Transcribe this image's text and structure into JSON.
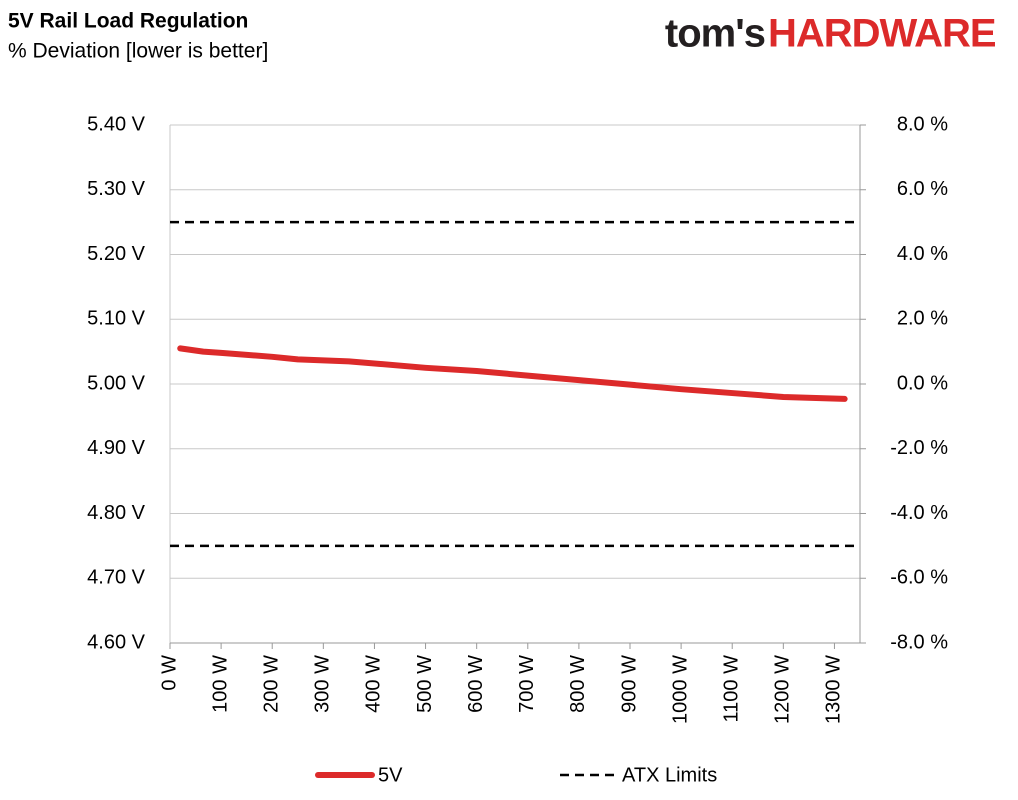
{
  "chart_data": {
    "type": "line",
    "title": "5V Rail Load Regulation",
    "subtitle": "% Deviation [lower is better]",
    "logo": {
      "left": "tom's",
      "right": "HARDWARE"
    },
    "x": [
      20,
      65,
      100,
      200,
      250,
      350,
      500,
      600,
      700,
      800,
      900,
      1000,
      1100,
      1200,
      1320
    ],
    "series": [
      {
        "name": "5V",
        "color": "#dc2a2a",
        "values": [
          5.055,
          5.05,
          5.048,
          5.042,
          5.038,
          5.035,
          5.025,
          5.02,
          5.013,
          5.006,
          4.999,
          4.992,
          4.986,
          4.98,
          4.977
        ]
      }
    ],
    "limits": {
      "name": "ATX Limits",
      "color": "#000000",
      "values": [
        5.25,
        4.75
      ]
    },
    "xlim": [
      0,
      1350
    ],
    "xticks": [
      {
        "value": 0,
        "label": "0 W"
      },
      {
        "value": 100,
        "label": "100 W"
      },
      {
        "value": 200,
        "label": "200 W"
      },
      {
        "value": 300,
        "label": "300 W"
      },
      {
        "value": 400,
        "label": "400 W"
      },
      {
        "value": 500,
        "label": "500 W"
      },
      {
        "value": 600,
        "label": "600 W"
      },
      {
        "value": 700,
        "label": "700 W"
      },
      {
        "value": 800,
        "label": "800 W"
      },
      {
        "value": 900,
        "label": "900 W"
      },
      {
        "value": 1000,
        "label": "1000 W"
      },
      {
        "value": 1100,
        "label": "1100 W"
      },
      {
        "value": 1200,
        "label": "1200 W"
      },
      {
        "value": 1300,
        "label": "1300 W"
      }
    ],
    "ylim": [
      4.6,
      5.4
    ],
    "yticks": [
      {
        "value": 4.6,
        "label": "4.60 V"
      },
      {
        "value": 4.7,
        "label": "4.70 V"
      },
      {
        "value": 4.8,
        "label": "4.80 V"
      },
      {
        "value": 4.9,
        "label": "4.90 V"
      },
      {
        "value": 5.0,
        "label": "5.00 V"
      },
      {
        "value": 5.1,
        "label": "5.10 V"
      },
      {
        "value": 5.2,
        "label": "5.20 V"
      },
      {
        "value": 5.3,
        "label": "5.30 V"
      },
      {
        "value": 5.4,
        "label": "5.40 V"
      }
    ],
    "y2lim": [
      -8,
      8
    ],
    "y2ticks": [
      {
        "value": -8,
        "label": "-8.0 %"
      },
      {
        "value": -6,
        "label": "-6.0 %"
      },
      {
        "value": -4,
        "label": "-4.0 %"
      },
      {
        "value": -2,
        "label": "-2.0 %"
      },
      {
        "value": 0,
        "label": "0.0 %"
      },
      {
        "value": 2,
        "label": "2.0 %"
      },
      {
        "value": 4,
        "label": "4.0 %"
      },
      {
        "value": 6,
        "label": "6.0 %"
      },
      {
        "value": 8,
        "label": "8.0 %"
      }
    ],
    "grid": true
  }
}
